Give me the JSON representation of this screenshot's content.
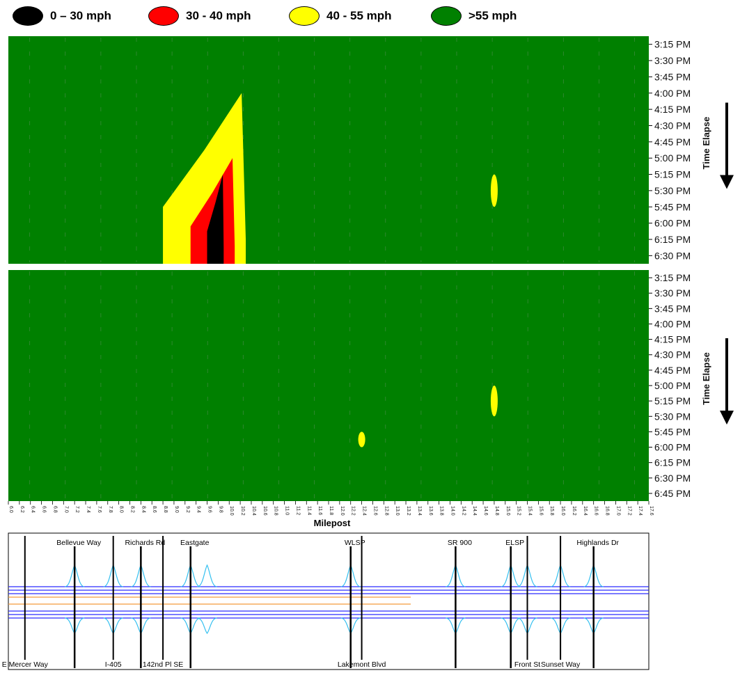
{
  "legend": [
    {
      "label": "0 – 30 mph",
      "color": "#000000"
    },
    {
      "label": "30 - 40 mph",
      "color": "#ff0000"
    },
    {
      "label": "40 - 55 mph",
      "color": "#ffff00"
    },
    {
      "label": ">55 mph",
      "color": "#008000"
    }
  ],
  "chart_data": [
    {
      "type": "heatmap",
      "x_label": "",
      "y_label": "Time Elapse",
      "y_ticks": [
        "3:15 PM",
        "3:30 PM",
        "3:45 PM",
        "4:00 PM",
        "4:15 PM",
        "4:30 PM",
        "4:45 PM",
        "5:00 PM",
        "5:15 PM",
        "5:30 PM",
        "5:45 PM",
        "6:00 PM",
        "6:15 PM",
        "6:30 PM"
      ],
      "xlim": [
        6.0,
        17.6
      ],
      "background_category": ">55 mph",
      "regions": [
        {
          "category": "40 - 55 mph",
          "milepost_start": 8.8,
          "milepost_end": 10.3,
          "time_start": "4:00 PM",
          "time_end": "6:30 PM"
        },
        {
          "category": "30 - 40 mph",
          "milepost_start": 9.3,
          "milepost_end": 10.1,
          "time_start": "5:00 PM",
          "time_end": "6:30 PM"
        },
        {
          "category": "0 – 30 mph",
          "milepost_start": 9.6,
          "milepost_end": 9.9,
          "time_start": "5:15 PM",
          "time_end": "6:30 PM"
        },
        {
          "category": "40 - 55 mph",
          "milepost_start": 14.8,
          "milepost_end": 14.8,
          "time_start": "5:15 PM",
          "time_end": "5:45 PM"
        }
      ]
    },
    {
      "type": "heatmap",
      "x_label": "Milepost",
      "y_label": "Time Elapse",
      "y_ticks": [
        "3:15 PM",
        "3:30 PM",
        "3:45 PM",
        "4:00 PM",
        "4:15 PM",
        "4:30 PM",
        "4:45 PM",
        "5:00 PM",
        "5:15 PM",
        "5:30 PM",
        "5:45 PM",
        "6:00 PM",
        "6:15 PM",
        "6:30 PM",
        "6:45 PM"
      ],
      "x_ticks": [
        "6.0",
        "6.2",
        "6.4",
        "6.6",
        "6.8",
        "7.0",
        "7.2",
        "7.4",
        "7.6",
        "7.8",
        "8.0",
        "8.2",
        "8.4",
        "8.6",
        "8.8",
        "9.0",
        "9.2",
        "9.4",
        "9.6",
        "9.8",
        "10.0",
        "10.2",
        "10.4",
        "10.6",
        "10.8",
        "11.0",
        "11.2",
        "11.4",
        "11.6",
        "11.8",
        "12.0",
        "12.2",
        "12.4",
        "12.6",
        "12.8",
        "13.0",
        "13.2",
        "13.4",
        "13.6",
        "13.8",
        "14.0",
        "14.2",
        "14.4",
        "14.6",
        "14.8",
        "15.0",
        "15.2",
        "15.4",
        "15.6",
        "15.8",
        "16.0",
        "16.2",
        "16.4",
        "16.6",
        "16.8",
        "17.0",
        "17.2",
        "17.4",
        "17.6"
      ],
      "xlim": [
        6.0,
        17.6
      ],
      "background_category": ">55 mph",
      "regions": [
        {
          "category": "40 - 55 mph",
          "milepost_start": 12.4,
          "milepost_end": 12.4,
          "time_start": "5:45 PM",
          "time_end": "6:00 PM"
        },
        {
          "category": "40 - 55 mph",
          "milepost_start": 14.8,
          "milepost_end": 14.8,
          "time_start": "5:00 PM",
          "time_end": "5:30 PM"
        }
      ]
    }
  ],
  "map": {
    "labels_top": [
      {
        "text": "Bellevue Way",
        "mp": 7.2
      },
      {
        "text": "Richards Rd",
        "mp": 8.4
      },
      {
        "text": "Eastgate",
        "mp": 9.3
      },
      {
        "text": "WLSP",
        "mp": 12.2
      },
      {
        "text": "SR 900",
        "mp": 14.1
      },
      {
        "text": "ELSP",
        "mp": 15.1
      },
      {
        "text": "Highlands Dr",
        "mp": 16.6
      }
    ],
    "labels_bottom": [
      {
        "text": "E Mercer Way",
        "mp": 6.3
      },
      {
        "text": "I-405",
        "mp": 7.9
      },
      {
        "text": "142nd Pl SE",
        "mp": 8.8
      },
      {
        "text": "Lakemont Blvd",
        "mp": 12.4
      },
      {
        "text": "Front St",
        "mp": 15.4
      },
      {
        "text": "Sunset Way",
        "mp": 16.0
      }
    ]
  }
}
